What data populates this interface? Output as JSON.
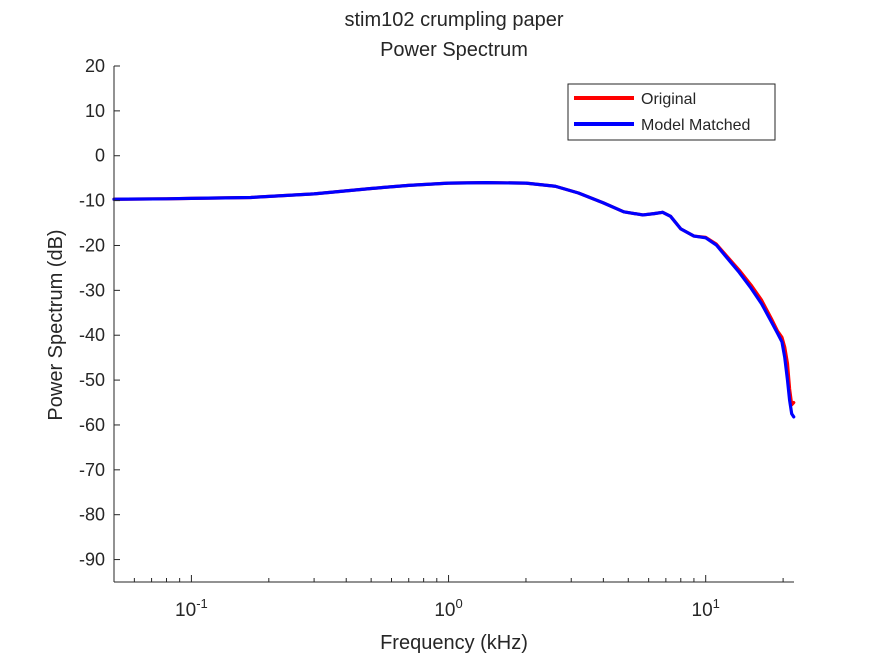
{
  "chart_data": {
    "type": "line",
    "title": "stim102 crumpling paper",
    "subtitle": "Power Spectrum",
    "xlabel": "Frequency (kHz)",
    "ylabel": "Power Spectrum (dB)",
    "xscale": "log",
    "xlim": [
      0.05,
      22.05
    ],
    "ylim": [
      -95,
      20
    ],
    "yticks": [
      20,
      10,
      0,
      -10,
      -20,
      -30,
      -40,
      -50,
      -60,
      -70,
      -80,
      -90
    ],
    "ytick_labels": [
      "20",
      "10",
      "0",
      "-10",
      "-20",
      "-30",
      "-40",
      "-50",
      "-60",
      "-70",
      "-80",
      "-90"
    ],
    "xticks": [
      {
        "value": 0.1,
        "base": "10",
        "exp": "-1"
      },
      {
        "value": 1,
        "base": "10",
        "exp": "0"
      },
      {
        "value": 10,
        "base": "10",
        "exp": "1"
      }
    ],
    "grid": false,
    "legend_position": "top-right",
    "series": [
      {
        "name": "Original",
        "color": "#ff0000",
        "x": [
          0.05,
          0.08,
          0.1,
          0.17,
          0.3,
          0.5,
          0.7,
          1.0,
          1.4,
          2.0,
          2.6,
          3.2,
          4.0,
          4.8,
          5.7,
          6.3,
          6.8,
          7.3,
          8.0,
          9.0,
          10.0,
          11.0,
          12.0,
          13.5,
          15.0,
          16.5,
          18.0,
          19.0,
          19.8,
          20.3,
          20.8,
          21.2,
          21.6,
          22.0
        ],
        "y": [
          -9.7,
          -9.6,
          -9.5,
          -9.3,
          -8.5,
          -7.3,
          -6.6,
          -6.1,
          -6.0,
          -6.1,
          -6.8,
          -8.3,
          -10.5,
          -12.5,
          -13.2,
          -12.9,
          -12.6,
          -13.5,
          -16.3,
          -17.9,
          -18.2,
          -19.7,
          -22.2,
          -25.5,
          -28.8,
          -32.2,
          -36.3,
          -39.0,
          -40.5,
          -42.7,
          -46.3,
          -52.0,
          -55.5,
          -55.0
        ]
      },
      {
        "name": "Model Matched",
        "color": "#0000ff",
        "x": [
          0.05,
          0.08,
          0.1,
          0.17,
          0.3,
          0.5,
          0.7,
          1.0,
          1.4,
          2.0,
          2.6,
          3.2,
          4.0,
          4.8,
          5.7,
          6.3,
          6.8,
          7.3,
          8.0,
          9.0,
          10.0,
          11.0,
          12.0,
          13.5,
          15.0,
          16.5,
          18.0,
          19.0,
          19.8,
          20.3,
          20.8,
          21.2,
          21.6,
          22.0
        ],
        "y": [
          -9.7,
          -9.6,
          -9.5,
          -9.3,
          -8.5,
          -7.3,
          -6.6,
          -6.1,
          -6.0,
          -6.1,
          -6.8,
          -8.3,
          -10.5,
          -12.5,
          -13.2,
          -12.9,
          -12.6,
          -13.5,
          -16.3,
          -17.9,
          -18.3,
          -19.9,
          -22.5,
          -26.0,
          -29.5,
          -33.0,
          -37.0,
          -39.5,
          -41.5,
          -45.0,
          -50.0,
          -54.5,
          -57.5,
          -58.2
        ]
      }
    ]
  }
}
